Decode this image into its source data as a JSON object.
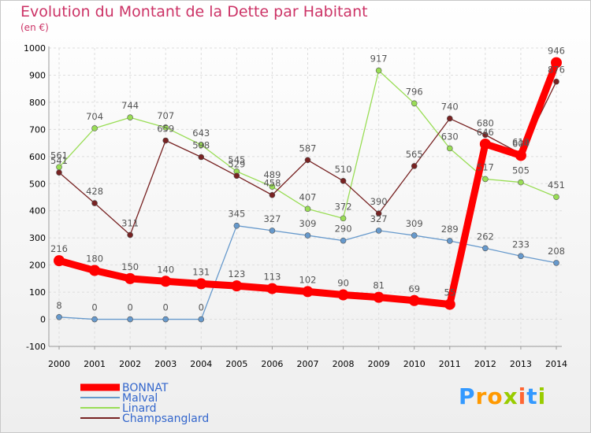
{
  "title": "Evolution du Montant de la Dette par Habitant",
  "subtitle": "(en €)",
  "logo": "Proxiti",
  "chart_data": {
    "type": "line",
    "x": [
      "2000",
      "2001",
      "2002",
      "2003",
      "2004",
      "2005",
      "2006",
      "2007",
      "2008",
      "2009",
      "2010",
      "2011",
      "2012",
      "2013",
      "2014"
    ],
    "ylim": [
      -100,
      1000
    ],
    "yticks": [
      -100,
      0,
      100,
      200,
      300,
      400,
      500,
      600,
      700,
      800,
      900,
      1000
    ],
    "grid": true,
    "legend_placement": "bottom-left",
    "series": [
      {
        "name": "BONNAT",
        "color": "#ff0000",
        "values": [
          216,
          180,
          150,
          140,
          131,
          123,
          113,
          102,
          90,
          81,
          69,
          55,
          646,
          604,
          946
        ]
      },
      {
        "name": "Malval",
        "color": "#6699cc",
        "values": [
          8,
          0,
          0,
          0,
          0,
          345,
          327,
          309,
          290,
          327,
          309,
          289,
          262,
          233,
          208
        ]
      },
      {
        "name": "Linard",
        "color": "#99dd55",
        "values": [
          561,
          704,
          744,
          707,
          643,
          545,
          489,
          407,
          372,
          917,
          796,
          630,
          517,
          505,
          451
        ]
      },
      {
        "name": "Champsanglard",
        "color": "#772222",
        "values": [
          541,
          428,
          311,
          659,
          598,
          529,
          458,
          587,
          510,
          390,
          565,
          740,
          680,
          610,
          876
        ]
      }
    ]
  }
}
